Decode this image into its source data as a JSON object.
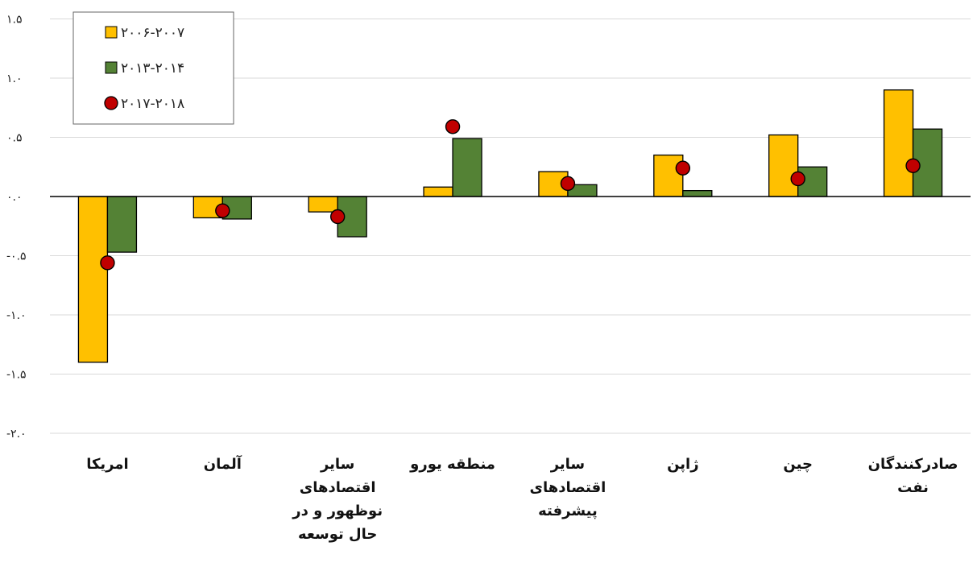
{
  "chart_data": {
    "type": "bar",
    "categories": [
      "امریکا",
      "آلمان",
      "سایر اقتصادهای نوظهور و در حال توسعه",
      "منطقه یورو",
      "سایر اقتصادهای پیشرفته",
      "ژاپن",
      "چین",
      "صادرکنندگان نفت"
    ],
    "category_lines": [
      [
        "امریکا"
      ],
      [
        "آلمان"
      ],
      [
        "سایر",
        "اقتصادهای",
        "نوظهور و در",
        "حال توسعه"
      ],
      [
        "منطقه یورو"
      ],
      [
        "سایر",
        "اقتصادهای",
        "پیشرفته"
      ],
      [
        "ژاپن"
      ],
      [
        "چین"
      ],
      [
        "صادرکنندگان",
        "نفت"
      ]
    ],
    "series": [
      {
        "name": "۲۰۰۶-۲۰۰۷",
        "kind": "bar",
        "color": "#FFC000",
        "values": [
          -1.4,
          -0.18,
          -0.13,
          0.08,
          0.21,
          0.35,
          0.52,
          0.9
        ]
      },
      {
        "name": "۲۰۱۳-۲۰۱۴",
        "kind": "bar",
        "color": "#548235",
        "values": [
          -0.47,
          -0.19,
          -0.34,
          0.49,
          0.1,
          0.05,
          0.25,
          0.57
        ]
      },
      {
        "name": "۲۰۱۷-۲۰۱۸",
        "kind": "marker",
        "color": "#C00000",
        "values": [
          -0.56,
          -0.12,
          -0.17,
          0.59,
          0.11,
          0.24,
          0.15,
          0.26
        ]
      }
    ],
    "yticks": [
      1.5,
      1.0,
      0.5,
      0.0,
      -0.5,
      -1.0,
      -1.5,
      -2.0
    ],
    "ytick_labels": [
      "۱.۵",
      "۱.۰",
      "۰.۵",
      "۰.۰",
      "-۰.۵",
      "-۱.۰",
      "-۱.۵",
      "-۲.۰"
    ],
    "ylim": [
      -2.0,
      1.5
    ],
    "grid": true,
    "legend_position": "top-left"
  }
}
